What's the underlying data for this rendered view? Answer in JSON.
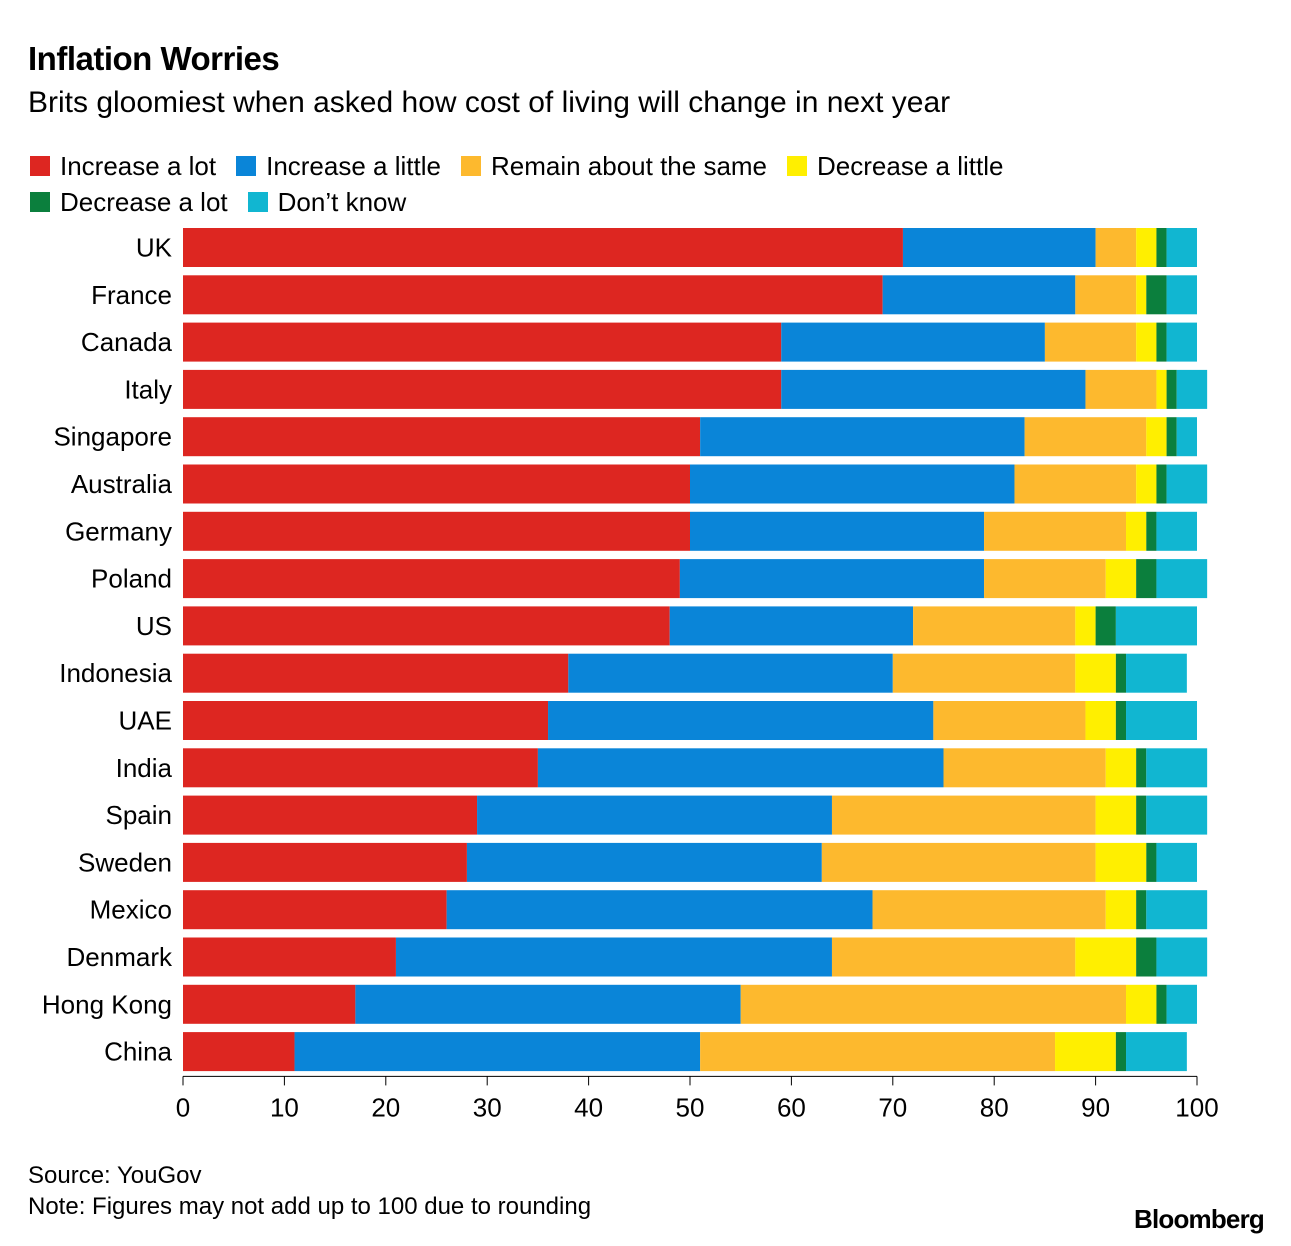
{
  "title": "Inflation Worries",
  "subtitle": "Brits gloomiest when asked how cost of living will change in next year",
  "source": "Source: YouGov",
  "note": "Note: Figures may not add up to 100 due to rounding",
  "brand": "Bloomberg",
  "chart_data": {
    "type": "bar",
    "orientation": "horizontal",
    "stacked": true,
    "title": "Inflation Worries",
    "subtitle": "Brits gloomiest when asked how cost of living will change in next year",
    "xlabel": "",
    "ylabel": "",
    "xlim": [
      0,
      100
    ],
    "x_ticks": [
      0,
      10,
      20,
      30,
      40,
      50,
      60,
      70,
      80,
      90,
      100
    ],
    "grid": false,
    "legend_position": "top",
    "categories": [
      "UK",
      "France",
      "Canada",
      "Italy",
      "Singapore",
      "Australia",
      "Germany",
      "Poland",
      "US",
      "Indonesia",
      "UAE",
      "India",
      "Spain",
      "Sweden",
      "Mexico",
      "Denmark",
      "Hong Kong",
      "China"
    ],
    "series": [
      {
        "name": "Increase a lot",
        "color": "#dd2621",
        "values": [
          71,
          69,
          59,
          59,
          51,
          50,
          50,
          49,
          48,
          38,
          36,
          35,
          29,
          28,
          26,
          21,
          17,
          11
        ]
      },
      {
        "name": "Increase a little",
        "color": "#0a85d8",
        "values": [
          19,
          19,
          26,
          30,
          32,
          32,
          29,
          30,
          24,
          32,
          38,
          40,
          35,
          35,
          42,
          43,
          38,
          40
        ]
      },
      {
        "name": "Remain about the same",
        "color": "#fdb92e",
        "values": [
          4,
          6,
          9,
          7,
          12,
          12,
          14,
          12,
          16,
          18,
          15,
          16,
          26,
          27,
          23,
          24,
          38,
          35
        ]
      },
      {
        "name": "Decrease a little",
        "color": "#ffef00",
        "values": [
          2,
          1,
          2,
          1,
          2,
          2,
          2,
          3,
          2,
          4,
          3,
          3,
          4,
          5,
          3,
          6,
          3,
          6
        ]
      },
      {
        "name": "Decrease a lot",
        "color": "#0b7f3d",
        "values": [
          1,
          2,
          1,
          1,
          1,
          1,
          1,
          2,
          2,
          1,
          1,
          1,
          1,
          1,
          1,
          2,
          1,
          1
        ]
      },
      {
        "name": "Don’t know",
        "color": "#11b6d1",
        "values": [
          3,
          3,
          3,
          3,
          2,
          4,
          4,
          5,
          8,
          6,
          7,
          6,
          6,
          4,
          6,
          5,
          3,
          6
        ]
      }
    ]
  }
}
